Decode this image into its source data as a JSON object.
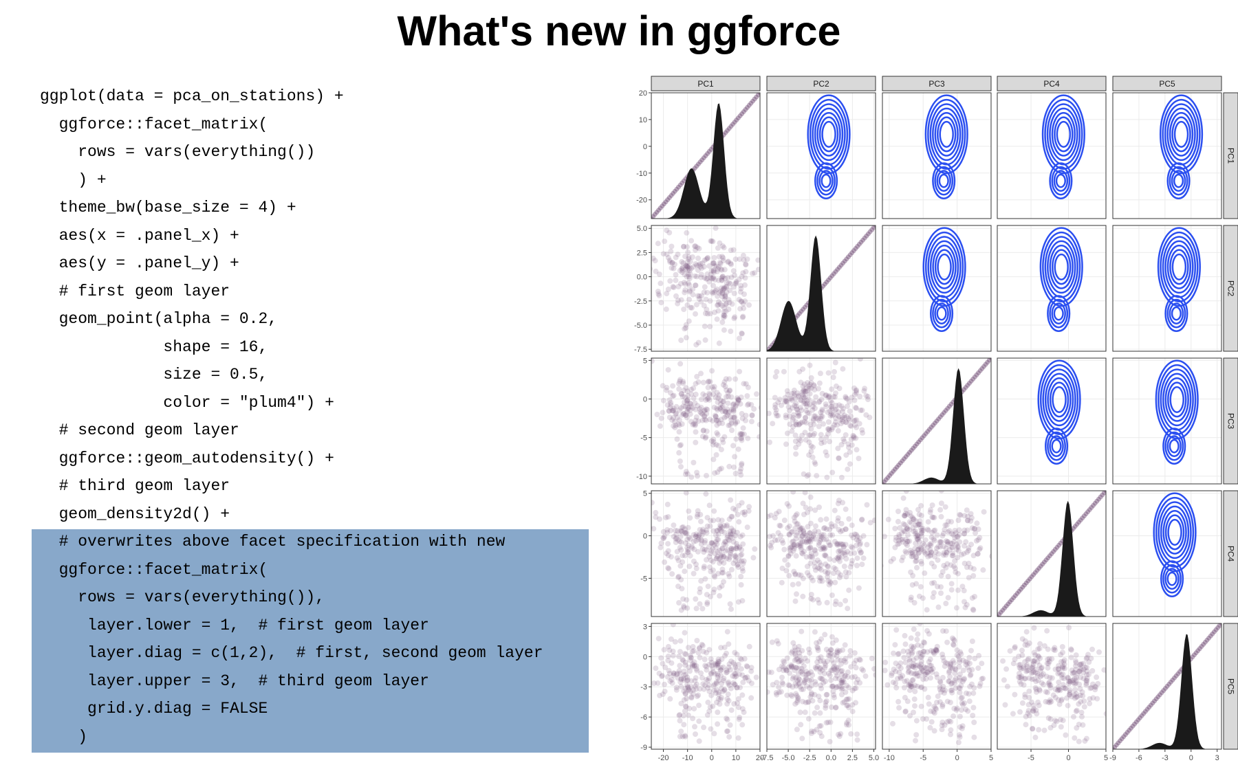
{
  "slide": {
    "title": "What's new in ggforce"
  },
  "code": {
    "lines": [
      "ggplot(data = pca_on_stations) +",
      "  ggforce::facet_matrix(",
      "    rows = vars(everything())",
      "    ) +",
      "  theme_bw(base_size = 4) +",
      "  aes(x = .panel_x) +",
      "  aes(y = .panel_y) +",
      "  # first geom layer",
      "  geom_point(alpha = 0.2,",
      "             shape = 16,",
      "             size = 0.5,",
      "             color = \"plum4\") +",
      "  # second geom layer",
      "  ggforce::geom_autodensity() +",
      "  # third geom layer",
      "  geom_density2d() +",
      "  # overwrites above facet specification with new",
      "  ggforce::facet_matrix(",
      "    rows = vars(everything()),",
      "     layer.lower = 1,  # first geom layer",
      "     layer.diag = c(1,2),  # first, second geom layer",
      "     layer.upper = 3,  # third geom layer",
      "     grid.y.diag = FALSE",
      "    )"
    ]
  },
  "chart_data": {
    "type": "scatter",
    "title": "",
    "colors": {
      "points": "#7b5a80",
      "density": "#1a1a1a",
      "contour": "#2b4ff0",
      "strip": "#d9d9d9"
    },
    "grid": true,
    "variables": [
      "PC1",
      "PC2",
      "PC3",
      "PC4",
      "PC5"
    ],
    "x_ranges": [
      [
        -25,
        20
      ],
      [
        -7.5,
        5.2
      ],
      [
        -11,
        5
      ],
      [
        -9.5,
        5
      ],
      [
        -9,
        3.5
      ]
    ],
    "y_ranges": [
      [
        -27,
        20
      ],
      [
        -7.7,
        5.3
      ],
      [
        -11,
        5.3
      ],
      [
        -9.5,
        5.3
      ],
      [
        -9.2,
        3.3
      ]
    ],
    "x_ticks": [
      [
        "-20",
        "-10",
        "0",
        "10",
        "20"
      ],
      [
        "-7.5",
        "-5.0",
        "-2.5",
        "0.0",
        "2.5",
        "5.0"
      ],
      [
        "-10",
        "-5",
        "0",
        "5"
      ],
      [
        "-5",
        "0",
        "5"
      ],
      [
        "-9",
        "-6",
        "-3",
        "0",
        "3"
      ]
    ],
    "y_ticks": [
      [
        "20",
        "10",
        "0",
        "-10",
        "-20"
      ],
      [
        "5.0",
        "2.5",
        "0.0",
        "-2.5",
        "-5.0",
        "-7.5"
      ],
      [
        "5",
        "0",
        "-5",
        "-10"
      ],
      [
        "5",
        "0",
        "-5"
      ],
      [
        "3",
        "0",
        "-3",
        "-6",
        "-9"
      ]
    ],
    "layers": {
      "lower": "points",
      "diag": "points + autodensity",
      "upper": "density2d"
    }
  }
}
